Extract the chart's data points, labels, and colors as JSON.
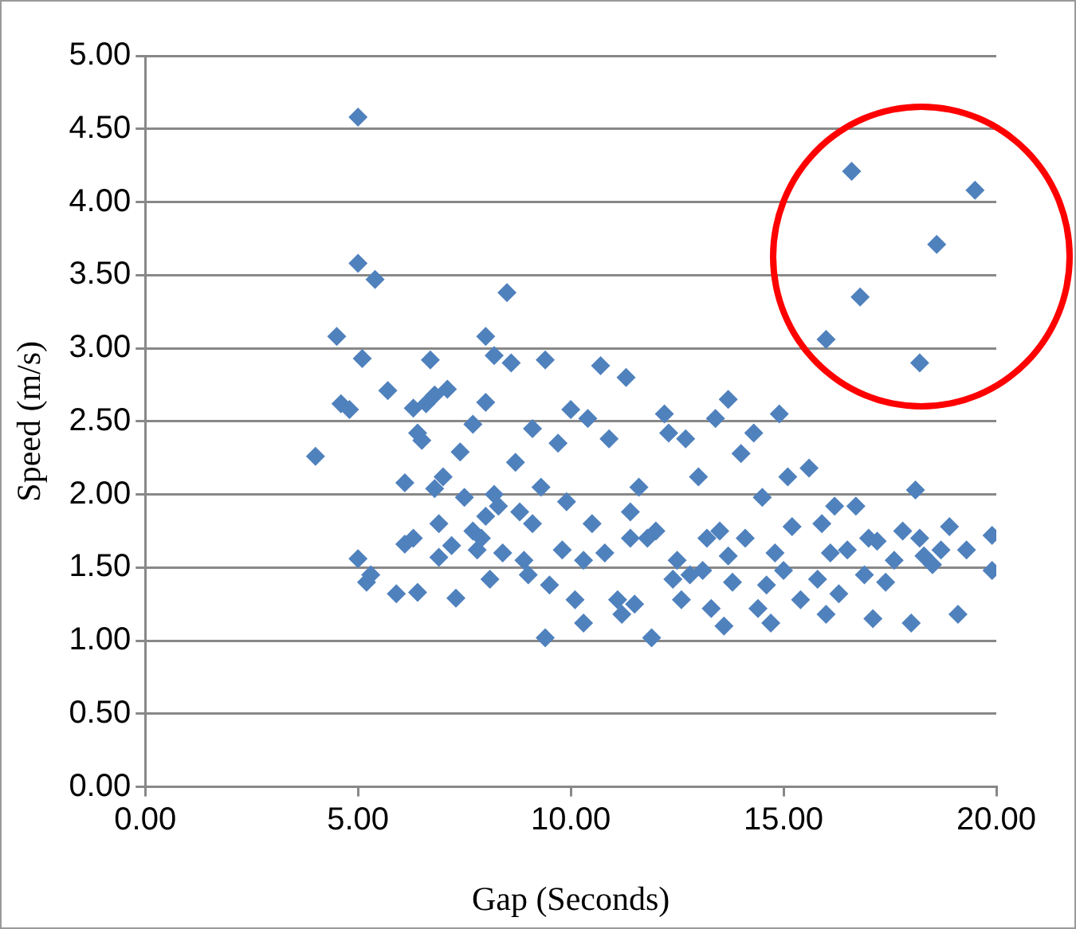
{
  "chart_data": {
    "type": "scatter",
    "xlabel": "Gap (Seconds)",
    "ylabel": "Speed (m/s)",
    "marker": "diamond",
    "grid": "y",
    "legend": false,
    "xlim": [
      0,
      20
    ],
    "xticks": [
      {
        "value": 0,
        "label": "0.00"
      },
      {
        "value": 5,
        "label": "5.00"
      },
      {
        "value": 10,
        "label": "10.00"
      },
      {
        "value": 15,
        "label": "15.00"
      },
      {
        "value": 20,
        "label": "20.00"
      }
    ],
    "ylim": [
      0,
      5
    ],
    "yticks": [
      {
        "value": 0,
        "label": "0.00"
      },
      {
        "value": 0.5,
        "label": "0.50"
      },
      {
        "value": 1,
        "label": "1.00"
      },
      {
        "value": 1.5,
        "label": "1.50"
      },
      {
        "value": 2,
        "label": "2.00"
      },
      {
        "value": 2.5,
        "label": "2.50"
      },
      {
        "value": 3,
        "label": "3.00"
      },
      {
        "value": 3.5,
        "label": "3.50"
      },
      {
        "value": 4,
        "label": "4.00"
      },
      {
        "value": 4.5,
        "label": "4.50"
      },
      {
        "value": 5,
        "label": "5.00"
      }
    ],
    "series": [
      {
        "color": "#4f81bd",
        "x": [
          4.0,
          4.5,
          4.6,
          4.8,
          5.0,
          5.2,
          5.3,
          5.7,
          5.9,
          5.0,
          5.0,
          5.1,
          6.1,
          6.1,
          6.3,
          6.3,
          6.4,
          6.4,
          5.4,
          6.5,
          6.6,
          6.7,
          6.8,
          6.8,
          6.9,
          6.9,
          7.0,
          7.1,
          7.2,
          7.3,
          7.4,
          7.5,
          7.7,
          7.7,
          7.8,
          7.9,
          8.0,
          8.0,
          8.0,
          8.1,
          8.2,
          8.2,
          8.3,
          8.4,
          8.5,
          8.6,
          8.7,
          8.8,
          8.9,
          9.0,
          9.1,
          9.1,
          9.3,
          9.4,
          9.4,
          9.5,
          9.7,
          9.8,
          9.9,
          10.0,
          10.1,
          10.3,
          10.3,
          10.4,
          10.5,
          10.7,
          10.8,
          10.9,
          11.1,
          11.2,
          11.3,
          11.4,
          11.4,
          11.5,
          11.6,
          11.8,
          11.9,
          12.0,
          12.2,
          12.3,
          12.4,
          12.5,
          12.6,
          12.7,
          12.8,
          13.0,
          13.1,
          13.2,
          13.3,
          13.4,
          13.5,
          13.6,
          13.7,
          13.7,
          13.8,
          14.0,
          14.1,
          14.3,
          14.4,
          14.5,
          14.6,
          14.7,
          14.8,
          14.9,
          15.0,
          15.1,
          15.2,
          15.4,
          15.6,
          15.8,
          15.9,
          16.0,
          16.1,
          16.2,
          16.3,
          16.5,
          16.7,
          16.9,
          17.0,
          17.1,
          17.2,
          17.4,
          17.6,
          17.8,
          18.0,
          18.1,
          18.2,
          18.3,
          18.5,
          18.7,
          18.9,
          19.1,
          19.3,
          19.9,
          19.9,
          16.6,
          16.8,
          16.0,
          18.6,
          18.2,
          19.5
        ],
        "values": [
          2.26,
          3.08,
          2.62,
          2.58,
          1.56,
          1.4,
          1.45,
          2.71,
          1.32,
          4.58,
          3.58,
          2.93,
          2.08,
          1.66,
          2.59,
          1.7,
          1.33,
          2.42,
          3.47,
          2.37,
          2.62,
          2.92,
          2.68,
          2.04,
          1.57,
          1.8,
          2.12,
          2.72,
          1.65,
          1.29,
          2.29,
          1.98,
          2.48,
          1.75,
          1.62,
          1.7,
          3.08,
          2.63,
          1.85,
          1.42,
          2.0,
          2.95,
          1.92,
          1.6,
          3.38,
          2.9,
          2.22,
          1.88,
          1.55,
          1.45,
          2.45,
          1.8,
          2.05,
          2.92,
          1.02,
          1.38,
          2.35,
          1.62,
          1.95,
          2.58,
          1.28,
          1.55,
          1.12,
          2.52,
          1.8,
          2.88,
          1.6,
          2.38,
          1.28,
          1.18,
          2.8,
          1.7,
          1.88,
          1.25,
          2.05,
          1.7,
          1.02,
          1.75,
          2.55,
          2.42,
          1.42,
          1.55,
          1.28,
          2.38,
          1.45,
          2.12,
          1.48,
          1.7,
          1.22,
          2.52,
          1.75,
          1.1,
          2.65,
          1.58,
          1.4,
          2.28,
          1.7,
          2.42,
          1.22,
          1.98,
          1.38,
          1.12,
          1.6,
          2.55,
          1.48,
          2.12,
          1.78,
          1.28,
          2.18,
          1.42,
          1.8,
          1.18,
          1.6,
          1.92,
          1.32,
          1.62,
          1.92,
          1.45,
          1.7,
          1.15,
          1.68,
          1.4,
          1.55,
          1.75,
          1.12,
          2.03,
          1.7,
          1.58,
          1.52,
          1.62,
          1.78,
          1.18,
          1.62,
          1.48,
          1.72,
          4.21,
          3.35,
          3.06,
          3.71,
          2.9,
          4.08
        ]
      }
    ]
  }
}
